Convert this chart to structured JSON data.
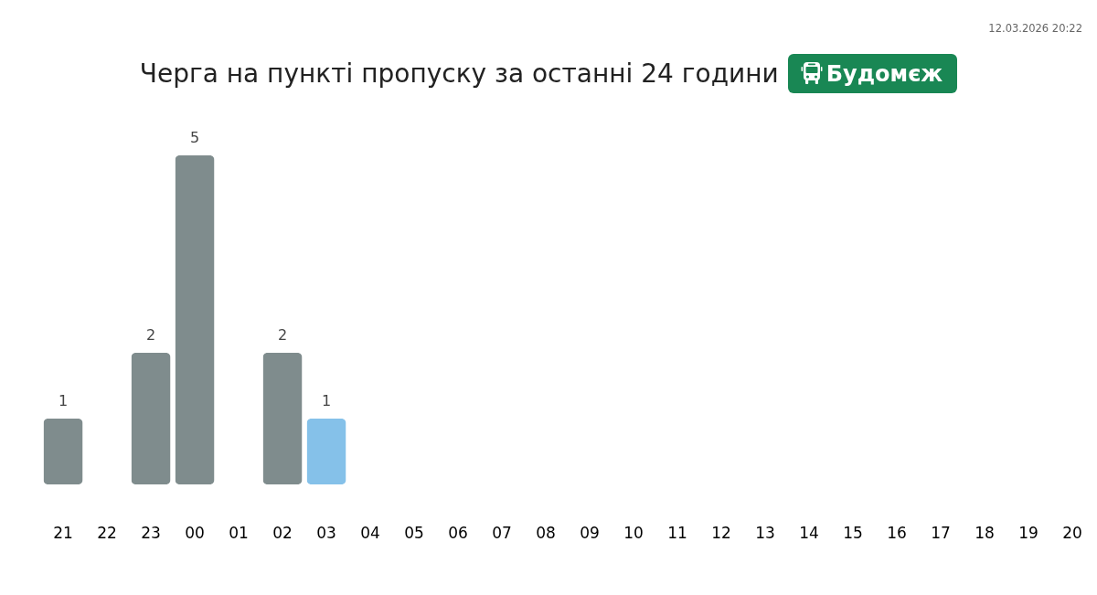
{
  "chart_data": {
    "type": "bar",
    "title": "Черга на пункті пропуску за останні 24 години",
    "subtitle": "Будомєж",
    "annotations": [
      "12.03.2026 20:22"
    ],
    "categories": [
      "21",
      "22",
      "23",
      "00",
      "01",
      "02",
      "03",
      "04",
      "05",
      "06",
      "07",
      "08",
      "09",
      "10",
      "11",
      "12",
      "13",
      "14",
      "15",
      "16",
      "17",
      "18",
      "19",
      "20"
    ],
    "values": [
      1,
      null,
      2,
      5,
      null,
      2,
      1,
      null,
      null,
      null,
      null,
      null,
      null,
      null,
      null,
      null,
      null,
      null,
      null,
      null,
      null,
      null,
      null,
      null
    ],
    "colors": [
      "#7f8c8d",
      "#7f8c8d",
      "#7f8c8d",
      "#7f8c8d",
      "#7f8c8d",
      "#7f8c8d",
      "#85c1e9",
      "#7f8c8d",
      "#7f8c8d",
      "#7f8c8d",
      "#7f8c8d",
      "#7f8c8d",
      "#7f8c8d",
      "#7f8c8d",
      "#7f8c8d",
      "#7f8c8d",
      "#7f8c8d",
      "#7f8c8d",
      "#7f8c8d",
      "#7f8c8d",
      "#7f8c8d",
      "#7f8c8d",
      "#7f8c8d",
      "#7f8c8d"
    ],
    "data_labels": true,
    "tick_labels": "x"
  }
}
